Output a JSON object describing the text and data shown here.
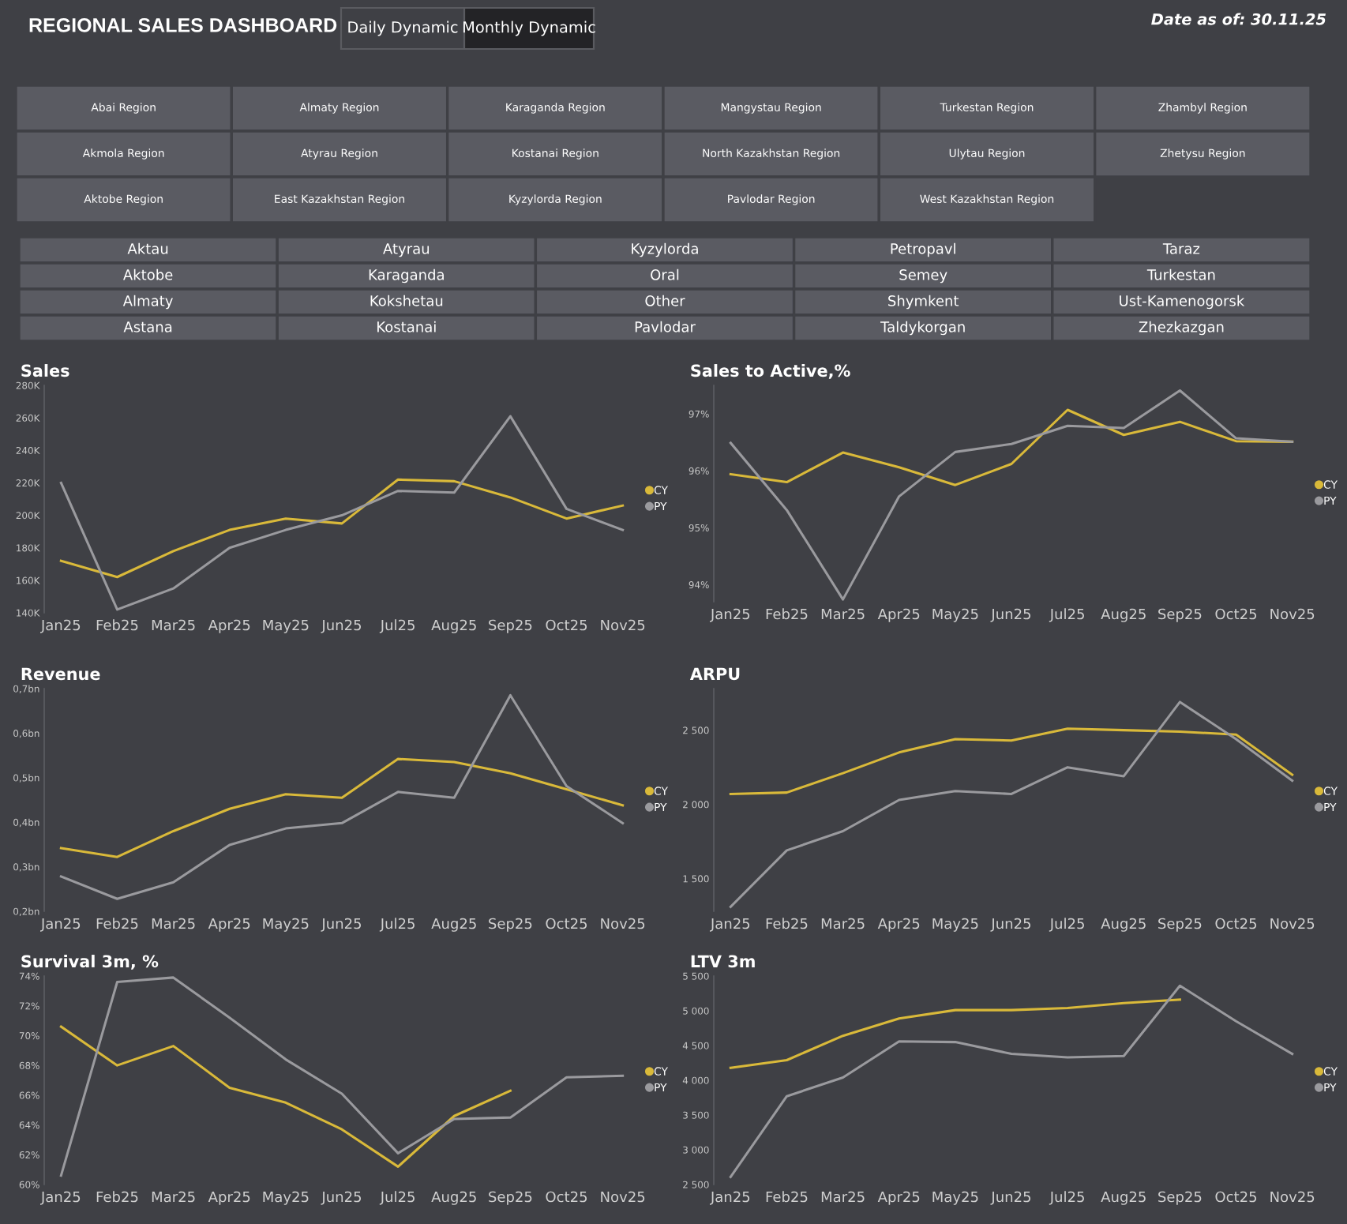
{
  "chart_data": [
    {
      "type": "other",
      "title": "REGIONAL SALES DASHBOARD",
      "annotations": [
        "Daily Dynamic",
        "Monthly Dynamic",
        "Date as of: 30.11.25"
      ]
    },
    {
      "type": "other",
      "categories": [
        "Abai Region",
        "Akmola Region",
        "Aktobe Region",
        "Almaty Region",
        "Atyrau Region",
        "East Kazakhstan Region",
        "Karaganda Region",
        "Kostanai Region",
        "Kyzylorda Region",
        "Mangystau Region",
        "North Kazakhstan Region",
        "Pavlodar Region",
        "Turkestan Region",
        "Ulytau Region",
        "West Kazakhstan Region",
        "Zhambyl Region",
        "Zhetysu Region"
      ]
    },
    {
      "type": "other",
      "categories": [
        "Aktau",
        "Aktobe",
        "Almaty",
        "Astana",
        "Atyrau",
        "Karaganda",
        "Kokshetau",
        "Kostanai",
        "Kyzylorda",
        "Oral",
        "Other",
        "Pavlodar",
        "Petropavl",
        "Semey",
        "Shymkent",
        "Taldykorgan",
        "Taraz",
        "Turkestan",
        "Ust-Kamenogorsk",
        "Zhezkazgan"
      ]
    },
    {
      "type": "line",
      "title": "Sales",
      "categories": [
        "Jan25",
        "Feb25",
        "Mar25",
        "Apr25",
        "May25",
        "Jun25",
        "Jul25",
        "Aug25",
        "Sep25",
        "Oct25",
        "Nov25"
      ],
      "ylim": [
        140,
        280
      ],
      "yticks": [
        {
          "value": 140,
          "label": "140K"
        },
        {
          "value": 160,
          "label": "160K"
        },
        {
          "value": 180,
          "label": "180K"
        },
        {
          "value": 200,
          "label": "200K"
        },
        {
          "value": 220,
          "label": "220K"
        },
        {
          "value": 240,
          "label": "240K"
        },
        {
          "value": 260,
          "label": "260K"
        },
        {
          "value": 280,
          "label": "280K"
        }
      ],
      "legend": "right",
      "grid": false,
      "line_style": "solid",
      "series": [
        {
          "name": "CY",
          "color": "#d9b93a",
          "values": [
            172,
            162,
            178,
            191,
            198,
            195,
            222,
            221,
            211,
            198,
            206
          ]
        },
        {
          "name": "PY",
          "color": "#9a9a9e",
          "values": [
            220,
            142,
            155,
            180,
            191,
            200,
            215,
            214,
            261,
            204,
            191
          ]
        }
      ]
    },
    {
      "type": "line",
      "title": "Sales to Active,%",
      "categories": [
        "Jan25",
        "Feb25",
        "Mar25",
        "Apr25",
        "May25",
        "Jun25",
        "Jul25",
        "Aug25",
        "Sep25",
        "Oct25",
        "Nov25"
      ],
      "ylim": [
        93.7,
        97.5
      ],
      "yticks": [
        {
          "value": 94,
          "label": "94%"
        },
        {
          "value": 95,
          "label": "95%"
        },
        {
          "value": 96,
          "label": "96%"
        },
        {
          "value": 97,
          "label": "97%"
        }
      ],
      "legend": "right",
      "grid": false,
      "line_style": "solid",
      "series": [
        {
          "name": "CY",
          "color": "#d9b93a",
          "values": [
            95.94,
            95.8,
            96.32,
            96.06,
            95.75,
            96.12,
            97.07,
            96.63,
            96.86,
            96.52,
            96.51
          ]
        },
        {
          "name": "PY",
          "color": "#9a9a9e",
          "values": [
            96.49,
            95.31,
            93.74,
            95.55,
            96.33,
            96.47,
            96.79,
            96.75,
            97.41,
            96.57,
            96.51
          ]
        }
      ]
    },
    {
      "type": "line",
      "title": "Revenue",
      "categories": [
        "Jan25",
        "Feb25",
        "Mar25",
        "Apr25",
        "May25",
        "Jun25",
        "Jul25",
        "Aug25",
        "Sep25",
        "Oct25",
        "Nov25"
      ],
      "ylim": [
        0.2,
        0.7
      ],
      "yticks": [
        {
          "value": 0.2,
          "label": "0,2bn"
        },
        {
          "value": 0.3,
          "label": "0,3bn"
        },
        {
          "value": 0.4,
          "label": "0,4bn"
        },
        {
          "value": 0.5,
          "label": "0,5bn"
        },
        {
          "value": 0.6,
          "label": "0,6bn"
        },
        {
          "value": 0.7,
          "label": "0,7bn"
        }
      ],
      "legend": "right",
      "grid": false,
      "line_style": "solid",
      "series": [
        {
          "name": "CY",
          "color": "#d9b93a",
          "values": [
            0.342,
            0.322,
            0.38,
            0.43,
            0.463,
            0.455,
            0.542,
            0.535,
            0.51,
            0.474,
            0.438
          ]
        },
        {
          "name": "PY",
          "color": "#9a9a9e",
          "values": [
            0.278,
            0.228,
            0.265,
            0.349,
            0.386,
            0.398,
            0.468,
            0.455,
            0.685,
            0.481,
            0.398
          ]
        }
      ]
    },
    {
      "type": "line",
      "title": "ARPU",
      "categories": [
        "Jan25",
        "Feb25",
        "Mar25",
        "Apr25",
        "May25",
        "Jun25",
        "Jul25",
        "Aug25",
        "Sep25",
        "Oct25",
        "Nov25"
      ],
      "ylim": [
        1280,
        2780
      ],
      "yticks": [
        {
          "value": 1500,
          "label": "1 500"
        },
        {
          "value": 2000,
          "label": "2 000"
        },
        {
          "value": 2500,
          "label": "2 500"
        }
      ],
      "legend": "right",
      "grid": false,
      "line_style": "solid",
      "series": [
        {
          "name": "CY",
          "color": "#d9b93a",
          "values": [
            2070,
            2080,
            2210,
            2350,
            2440,
            2430,
            2510,
            2500,
            2490,
            2470,
            2200
          ]
        },
        {
          "name": "PY",
          "color": "#9a9a9e",
          "values": [
            1310,
            1690,
            1820,
            2030,
            2090,
            2070,
            2250,
            2190,
            2690,
            2440,
            2160
          ]
        }
      ]
    },
    {
      "type": "line",
      "title": "Survival 3m, %",
      "categories": [
        "Jan25",
        "Feb25",
        "Mar25",
        "Apr25",
        "May25",
        "Jun25",
        "Jul25",
        "Aug25",
        "Sep25",
        "Oct25",
        "Nov25"
      ],
      "ylim": [
        60,
        74
      ],
      "yticks": [
        {
          "value": 60,
          "label": "60%"
        },
        {
          "value": 62,
          "label": "62%"
        },
        {
          "value": 64,
          "label": "64%"
        },
        {
          "value": 66,
          "label": "66%"
        },
        {
          "value": 68,
          "label": "68%"
        },
        {
          "value": 70,
          "label": "70%"
        },
        {
          "value": 72,
          "label": "72%"
        },
        {
          "value": 74,
          "label": "74%"
        }
      ],
      "legend": "right",
      "grid": false,
      "line_style": "solid",
      "series": [
        {
          "name": "CY",
          "color": "#d9b93a",
          "values": [
            70.6,
            68.0,
            69.3,
            66.5,
            65.5,
            63.7,
            61.2,
            64.6,
            66.3,
            null,
            null
          ]
        },
        {
          "name": "PY",
          "color": "#9a9a9e",
          "values": [
            60.6,
            73.6,
            73.9,
            71.2,
            68.4,
            66.1,
            62.1,
            64.4,
            64.5,
            67.2,
            67.3
          ]
        }
      ]
    },
    {
      "type": "line",
      "title": "LTV 3m",
      "categories": [
        "Jan25",
        "Feb25",
        "Mar25",
        "Apr25",
        "May25",
        "Jun25",
        "Jul25",
        "Aug25",
        "Sep25",
        "Oct25",
        "Nov25"
      ],
      "ylim": [
        2500,
        5500
      ],
      "yticks": [
        {
          "value": 2500,
          "label": "2 500"
        },
        {
          "value": 3000,
          "label": "3 000"
        },
        {
          "value": 3500,
          "label": "3 500"
        },
        {
          "value": 4000,
          "label": "4 000"
        },
        {
          "value": 4500,
          "label": "4 500"
        },
        {
          "value": 5000,
          "label": "5 000"
        },
        {
          "value": 5500,
          "label": "5 500"
        }
      ],
      "legend": "right",
      "grid": false,
      "line_style": "solid",
      "series": [
        {
          "name": "CY",
          "color": "#d9b93a",
          "values": [
            4180,
            4290,
            4640,
            4890,
            5010,
            5010,
            5040,
            5110,
            5160,
            null,
            null
          ]
        },
        {
          "name": "PY",
          "color": "#9a9a9e",
          "values": [
            2610,
            3770,
            4040,
            4560,
            4550,
            4380,
            4330,
            4350,
            5360,
            4850,
            4380
          ]
        }
      ]
    }
  ]
}
